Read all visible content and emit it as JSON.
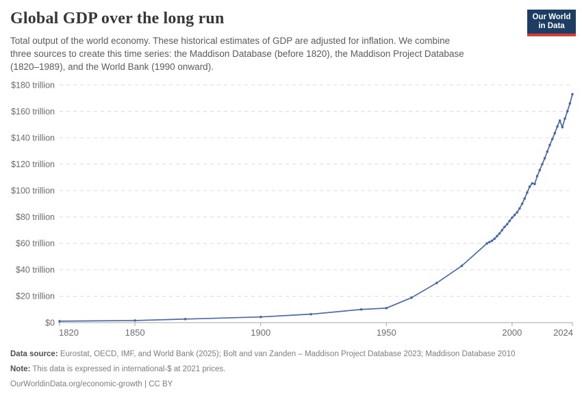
{
  "header": {
    "title": "Global GDP over the long run",
    "subtitle_lines": [
      "Total output of the world economy. These historical estimates of GDP are adjusted for inflation. We combine",
      "three sources to create this time series: the Maddison Database (before 1820), the Maddison Project Database",
      "(1820–1989), and the World Bank (1990 onward)."
    ],
    "logo": {
      "line1": "Our World",
      "line2": "in Data"
    }
  },
  "footer": {
    "source_label": "Data source:",
    "source_text": " Eurostat, OECD, IMF, and World Bank (2025); Bolt and van Zanden – Maddison Project Database 2023; Maddison Database 2010",
    "note_label": "Note:",
    "note_text": " This data is expressed in international-$ at 2021 prices.",
    "attribution": "OurWorldinData.org/economic-growth | CC BY"
  },
  "colors": {
    "line": "#4868a8",
    "grid": "#dcdcdc",
    "axis": "#a6a6a6",
    "axis_text": "#6b6b6b",
    "logo_bg": "#1d3d63",
    "logo_stripe": "#d93a34"
  },
  "chart_data": {
    "type": "line",
    "title": "Global GDP over the long run",
    "xlabel": "",
    "ylabel": "",
    "grid": true,
    "legend_position": "none",
    "x_axis": {
      "min": 1820,
      "max": 2024,
      "ticks": [
        {
          "value": 1820,
          "label": "1820"
        },
        {
          "value": 1850,
          "label": "1850"
        },
        {
          "value": 1900,
          "label": "1900"
        },
        {
          "value": 1950,
          "label": "1950"
        },
        {
          "value": 2000,
          "label": "2000"
        },
        {
          "value": 2024,
          "label": "2024"
        }
      ]
    },
    "y_axis": {
      "min": 0,
      "max": 180,
      "unit": "trillion international-$",
      "ticks": [
        {
          "value": 0,
          "label": "$0"
        },
        {
          "value": 20,
          "label": "$20 trillion"
        },
        {
          "value": 40,
          "label": "$40 trillion"
        },
        {
          "value": 60,
          "label": "$60 trillion"
        },
        {
          "value": 80,
          "label": "$80 trillion"
        },
        {
          "value": 100,
          "label": "$100 trillion"
        },
        {
          "value": 120,
          "label": "$120 trillion"
        },
        {
          "value": 140,
          "label": "$140 trillion"
        },
        {
          "value": 160,
          "label": "$160 trillion"
        },
        {
          "value": 180,
          "label": "$180 trillion"
        }
      ]
    },
    "series": [
      {
        "name": "World GDP (trillion international-$, 2021 prices)",
        "points": [
          [
            1820,
            1.1
          ],
          [
            1850,
            1.6
          ],
          [
            1870,
            2.7
          ],
          [
            1900,
            4.3
          ],
          [
            1920,
            6.4
          ],
          [
            1940,
            10.0
          ],
          [
            1950,
            11.0
          ],
          [
            1960,
            18.9
          ],
          [
            1970,
            30.0
          ],
          [
            1980,
            43.0
          ],
          [
            1990,
            60.0
          ],
          [
            1991,
            61.0
          ],
          [
            1992,
            62.0
          ],
          [
            1993,
            63.5
          ],
          [
            1994,
            65.5
          ],
          [
            1995,
            67.5
          ],
          [
            1996,
            70.0
          ],
          [
            1997,
            72.5
          ],
          [
            1998,
            74.5
          ],
          [
            1999,
            77.0
          ],
          [
            2000,
            79.5
          ],
          [
            2001,
            81.5
          ],
          [
            2002,
            83.5
          ],
          [
            2003,
            86.5
          ],
          [
            2004,
            90.0
          ],
          [
            2005,
            94.0
          ],
          [
            2006,
            98.5
          ],
          [
            2007,
            103.0
          ],
          [
            2008,
            105.5
          ],
          [
            2009,
            105.0
          ],
          [
            2010,
            111.0
          ],
          [
            2011,
            115.5
          ],
          [
            2012,
            120.0
          ],
          [
            2013,
            124.5
          ],
          [
            2014,
            129.5
          ],
          [
            2015,
            134.5
          ],
          [
            2016,
            139.0
          ],
          [
            2017,
            143.5
          ],
          [
            2018,
            148.5
          ],
          [
            2019,
            153.0
          ],
          [
            2020,
            148.0
          ],
          [
            2021,
            154.5
          ],
          [
            2022,
            160.0
          ],
          [
            2023,
            166.0
          ],
          [
            2024,
            173.0
          ]
        ]
      }
    ]
  }
}
